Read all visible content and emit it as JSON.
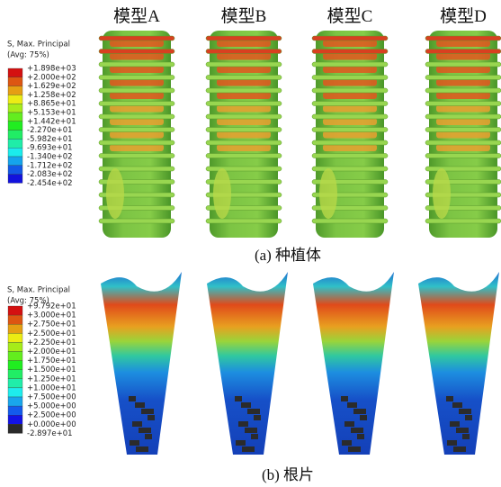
{
  "implant_panel": {
    "legend": {
      "title": "S, Max. Principal",
      "subtitle": "(Avg: 75%)",
      "labels": [
        "+1.898e+03",
        "+2.000e+02",
        "+1.629e+02",
        "+1.258e+02",
        "+8.865e+01",
        "+5.153e+01",
        "+1.442e+01",
        "-2.270e+01",
        "-5.982e+01",
        "-9.693e+01",
        "-1.340e+02",
        "-1.712e+02",
        "-2.083e+02",
        "-2.454e+02"
      ]
    },
    "models": [
      "模型A",
      "模型B",
      "模型C",
      "模型D"
    ],
    "caption": "(a) 种植体"
  },
  "root_panel": {
    "legend": {
      "title": "S, Max. Principal",
      "subtitle": "(Avg: 75%)",
      "labels": [
        "+9.792e+01",
        "+3.000e+01",
        "+2.750e+01",
        "+2.500e+01",
        "+2.250e+01",
        "+2.000e+01",
        "+1.750e+01",
        "+1.500e+01",
        "+1.250e+01",
        "+1.000e+01",
        "+7.500e+00",
        "+5.000e+00",
        "+2.500e+00",
        "+0.000e+00",
        "-2.897e+01"
      ]
    },
    "caption": "(b) 根片"
  }
}
